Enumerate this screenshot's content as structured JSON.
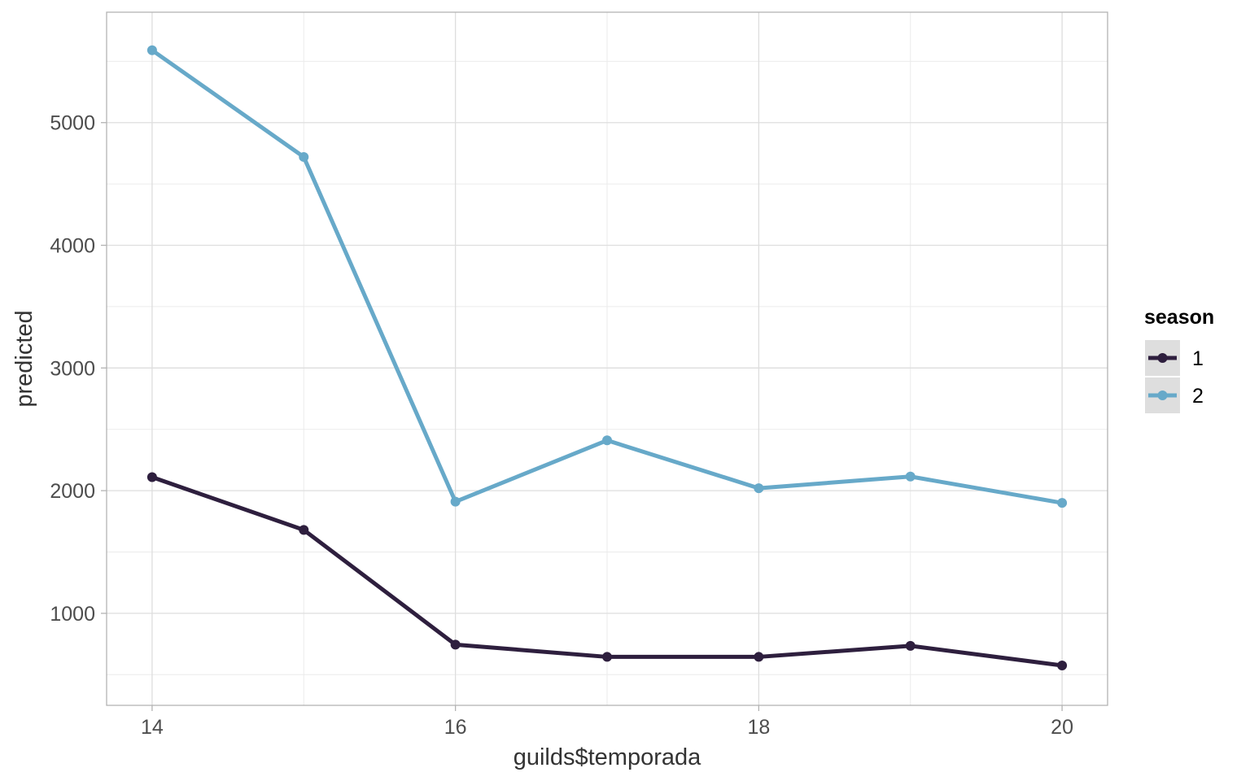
{
  "chart_data": {
    "type": "line",
    "title": "",
    "xlabel": "guilds$temporada",
    "ylabel": "predicted",
    "x": [
      14,
      15,
      16,
      17,
      18,
      19,
      20
    ],
    "x_ticks": [
      14,
      16,
      18,
      20
    ],
    "y_ticks": [
      1000,
      2000,
      3000,
      4000,
      5000
    ],
    "xlim": [
      13.7,
      20.3
    ],
    "ylim": [
      250,
      5900
    ],
    "grid": true,
    "legend": {
      "title": "season",
      "position": "right"
    },
    "series": [
      {
        "name": "1",
        "color": "#2e1f3e",
        "values": [
          2110,
          1680,
          745,
          645,
          645,
          735,
          575
        ]
      },
      {
        "name": "2",
        "color": "#67a9c9",
        "values": [
          5590,
          4720,
          1910,
          2410,
          2020,
          2115,
          1900
        ]
      }
    ]
  }
}
